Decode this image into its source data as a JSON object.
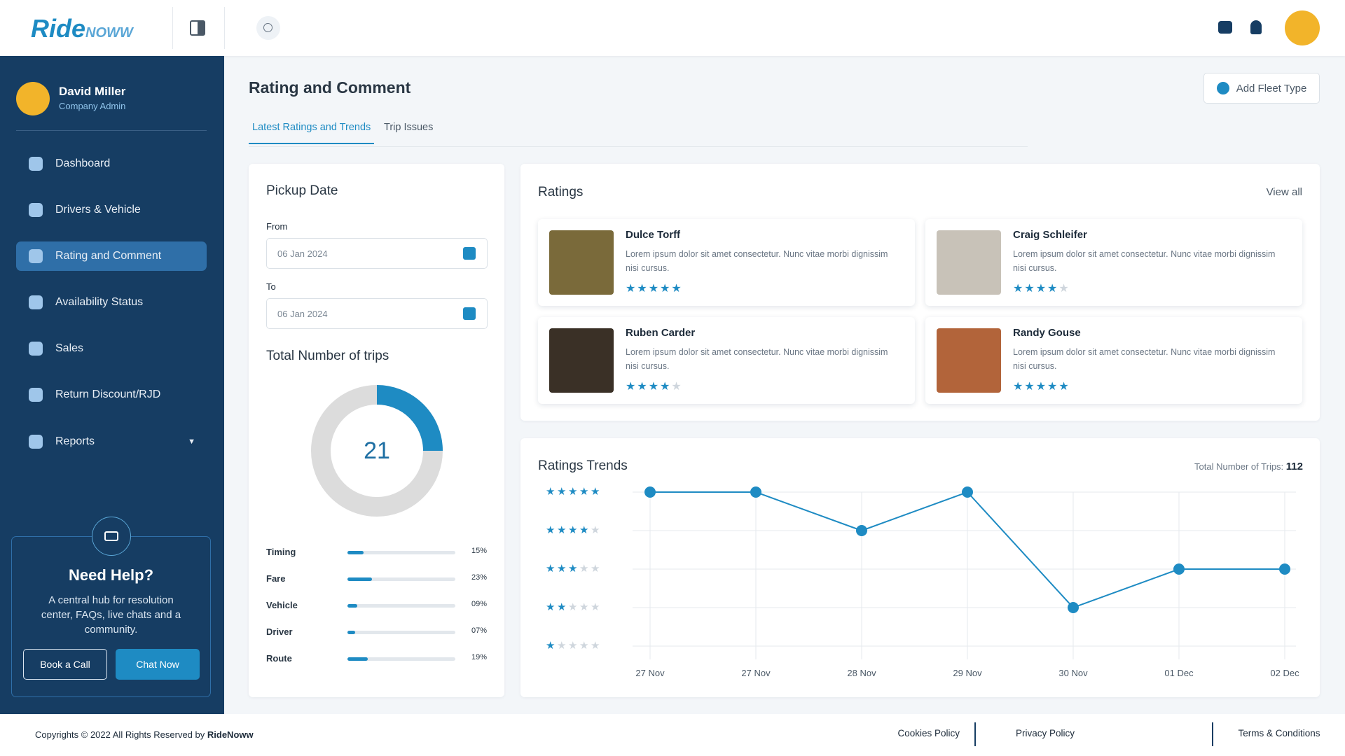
{
  "header": {
    "logo": {
      "brand": "Ride",
      "suffix": "NOWW"
    }
  },
  "sidebar": {
    "user": {
      "name": "David Miller",
      "role": "Company Admin"
    },
    "menu": [
      "Dashboard",
      "Drivers & Vehicle",
      "Rating and Comment",
      "Availability Status",
      "Sales",
      "Return Discount/RJD",
      "Reports"
    ],
    "help": {
      "title": "Need Help?",
      "text": "A central hub for resolution center, FAQs, live chats and a community.",
      "buttons": [
        "Book a Call",
        "Chat Now"
      ]
    }
  },
  "page": {
    "title": "Rating and Comment",
    "button": "Add Fleet Type",
    "tabs": [
      "Latest Ratings and Trends",
      "Trip Issues"
    ]
  },
  "pickup": {
    "title": "Pickup Date",
    "from_label": "From",
    "from": "06 Jan 2024",
    "to_label": "To",
    "to": "06 Jan 2024"
  },
  "trips": {
    "title": "Total Number of trips",
    "total": 21,
    "categories": [
      "Timing",
      "Fare",
      "Vehicle",
      "Driver",
      "Route"
    ],
    "values": [
      15,
      23,
      9,
      7,
      19
    ],
    "value_labels": [
      "15%",
      "23%",
      "09%",
      "07%",
      "19%"
    ]
  },
  "ratings": {
    "title": "Ratings",
    "link": "View all",
    "reviews": [
      {
        "name": "Dulce Torff",
        "text": "Lorem ipsum dolor sit amet consectetur. Nunc vitae morbi dignissim nisi cursus.",
        "stars": 5
      },
      {
        "name": "Craig Schleifer",
        "text": "Lorem ipsum dolor sit amet consectetur. Nunc vitae morbi dignissim nisi cursus.",
        "stars": 4
      },
      {
        "name": "Ruben Carder",
        "text": "Lorem ipsum dolor sit amet consectetur. Nunc vitae morbi dignissim nisi cursus.",
        "stars": 4
      },
      {
        "name": "Randy Gouse",
        "text": "Lorem ipsum dolor sit amet consectetur. Nunc vitae morbi dignissim nisi cursus.",
        "stars": 5
      }
    ]
  },
  "chart_data": {
    "type": "line",
    "title": "Ratings Trends",
    "total_label": "Total Number of Trips:",
    "total": 112,
    "categories": [
      "27 Nov",
      "27 Nov",
      "28 Nov",
      "29 Nov",
      "30 Nov",
      "01 Dec",
      "02 Dec"
    ],
    "values": [
      5,
      5,
      4,
      5,
      2,
      3,
      3
    ],
    "ylim": [
      1,
      5
    ],
    "yticks": [
      1,
      2,
      3,
      4,
      5
    ],
    "color": "#1e8bc3",
    "grid": true
  },
  "footer": {
    "copyright": "Copyrights © 2022 All Rights Reserved by",
    "brand": "RideNoww",
    "links": [
      "Cookies Policy",
      "Privacy Policy",
      "Terms & Conditions"
    ]
  }
}
